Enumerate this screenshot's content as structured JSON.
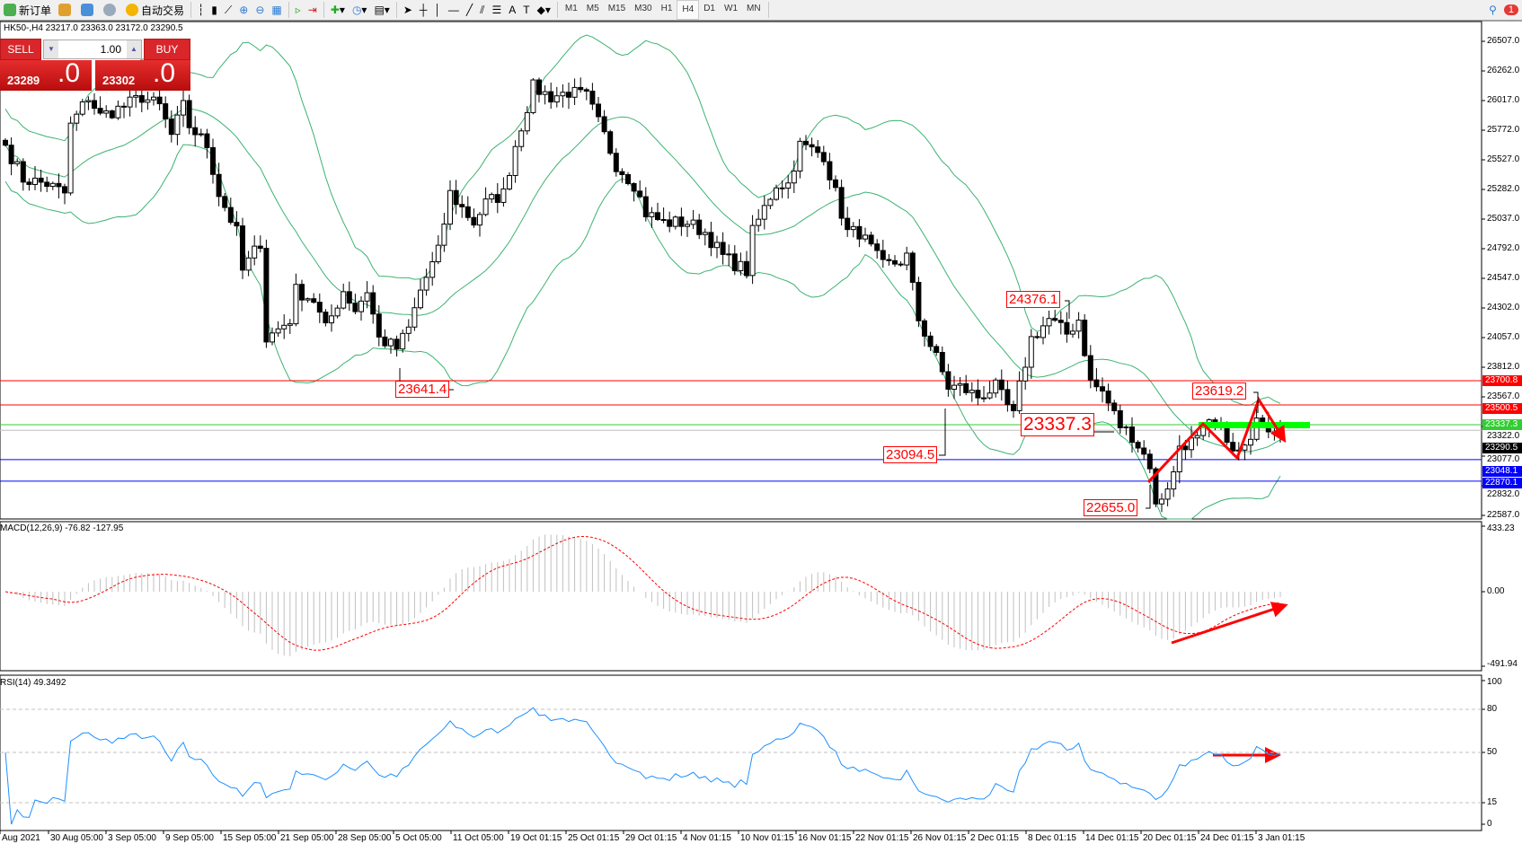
{
  "toolbar": {
    "new_order": "新订单",
    "auto_trading": "自动交易",
    "timeframes": [
      "M1",
      "M5",
      "M15",
      "M30",
      "H1",
      "H4",
      "D1",
      "W1",
      "MN"
    ],
    "active_timeframe": "H4",
    "notification_count": "1",
    "tool_icons": [
      "arrow-cursor-icon",
      "crosshair-icon",
      "vertical-line-icon",
      "horizontal-line-icon",
      "trendline-icon",
      "fibonacci-icon",
      "fibo-fan-icon",
      "text-icon",
      "text-label-icon",
      "shapes-icon"
    ]
  },
  "symbol_header": "HK50-,H4  23217.0 23363.0 23172.0 23290.5",
  "trade_panel": {
    "sell_label": "SELL",
    "buy_label": "BUY",
    "lot": "1.00",
    "sell_price_main": "23289",
    "sell_price_big": ".0",
    "buy_price_main": "23302",
    "buy_price_big": ".0"
  },
  "price_axis": [
    "26507.0",
    "26262.0",
    "26017.0",
    "25772.0",
    "25527.0",
    "25282.0",
    "25037.0",
    "24792.0",
    "24547.0",
    "24302.0",
    "24057.0",
    "23812.0",
    "23567.0",
    "23322.0",
    "23077.0",
    "22832.0",
    "22587.0"
  ],
  "price_range": [
    22587.0,
    26507.0
  ],
  "hlines": [
    {
      "value": 23700.8,
      "label": "23700.8",
      "color": "#ff0000"
    },
    {
      "value": 23500.5,
      "label": "23500.5",
      "color": "#ff0000"
    },
    {
      "value": 23337.3,
      "label": "23337.3",
      "color": "#32cd32"
    },
    {
      "value": 23290.5,
      "label": "23290.5",
      "color": "#c0c0c0",
      "label_bg": "#000000"
    },
    {
      "value": 23048.1,
      "label": "23048.1",
      "color": "#0000ff"
    },
    {
      "value": 22870.1,
      "label": "22870.1",
      "color": "#0000ff"
    }
  ],
  "annotations": [
    "24376.1",
    "23641.4",
    "23094.5",
    "23337.3",
    "23619.2",
    "22655.0"
  ],
  "price_path": [
    [
      0,
      25648
    ],
    [
      3,
      25368
    ],
    [
      7,
      25328
    ],
    [
      10,
      25248
    ],
    [
      11,
      25808
    ],
    [
      14,
      26048
    ],
    [
      16,
      25888
    ],
    [
      20,
      25968
    ],
    [
      23,
      26048
    ],
    [
      26,
      25968
    ],
    [
      28,
      25728
    ],
    [
      30,
      25968
    ],
    [
      31,
      25808
    ],
    [
      34,
      25648
    ],
    [
      36,
      25248
    ],
    [
      39,
      24928
    ],
    [
      40,
      24608
    ],
    [
      43,
      24848
    ],
    [
      44,
      24048
    ],
    [
      46,
      24128
    ],
    [
      48,
      24208
    ],
    [
      49,
      24448
    ],
    [
      52,
      24368
    ],
    [
      54,
      24128
    ],
    [
      57,
      24448
    ],
    [
      59,
      24288
    ],
    [
      61,
      24448
    ],
    [
      63,
      24048
    ],
    [
      66,
      23968
    ],
    [
      68,
      24128
    ],
    [
      70,
      24448
    ],
    [
      73,
      24768
    ],
    [
      75,
      25248
    ],
    [
      79,
      25008
    ],
    [
      81,
      25168
    ],
    [
      84,
      25248
    ],
    [
      86,
      25648
    ],
    [
      89,
      26128
    ],
    [
      92,
      26048
    ],
    [
      95,
      26088
    ],
    [
      98,
      26048
    ],
    [
      101,
      25728
    ],
    [
      103,
      25488
    ],
    [
      106,
      25328
    ],
    [
      108,
      25088
    ],
    [
      111,
      25008
    ],
    [
      115,
      25008
    ],
    [
      118,
      24928
    ],
    [
      121,
      24728
    ],
    [
      125,
      24608
    ],
    [
      126,
      24928
    ],
    [
      130,
      25328
    ],
    [
      132,
      25328
    ],
    [
      134,
      25648
    ],
    [
      138,
      25568
    ],
    [
      140,
      25248
    ],
    [
      142,
      24928
    ],
    [
      144,
      24928
    ],
    [
      148,
      24648
    ],
    [
      151,
      24688
    ],
    [
      152,
      24728
    ],
    [
      154,
      24208
    ],
    [
      157,
      23888
    ],
    [
      159,
      23648
    ],
    [
      161,
      23648
    ],
    [
      164,
      23568
    ],
    [
      167,
      23648
    ],
    [
      170,
      23408
    ],
    [
      171,
      23648
    ],
    [
      173,
      24048
    ],
    [
      176,
      24208
    ],
    [
      179,
      24088
    ],
    [
      181,
      24208
    ],
    [
      183,
      23688
    ],
    [
      185,
      23608
    ],
    [
      188,
      23328
    ],
    [
      190,
      23248
    ],
    [
      193,
      23008
    ],
    [
      194,
      22655
    ],
    [
      197,
      22928
    ],
    [
      198,
      23168
    ],
    [
      201,
      23208
    ],
    [
      203,
      23328
    ],
    [
      206,
      23248
    ],
    [
      207,
      23088
    ],
    [
      210,
      23168
    ],
    [
      211,
      23448
    ],
    [
      213,
      23328
    ],
    [
      215,
      23290.5
    ]
  ],
  "macd": {
    "title": "MACD(12,26,9) -76.82 -127.95",
    "axis": [
      "433.23",
      "0.00",
      "-491.94"
    ],
    "range": [
      -491.94,
      433.23
    ]
  },
  "rsi": {
    "title": "RSI(14) 49.3492",
    "axis": [
      "100",
      "80",
      "50",
      "15",
      "0"
    ],
    "levels": [
      80,
      50,
      15
    ]
  },
  "time_axis": [
    "Aug 2021",
    "30 Aug 05:00",
    "3 Sep 05:00",
    "9 Sep 05:00",
    "15 Sep 05:00",
    "21 Sep 05:00",
    "28 Sep 05:00",
    "5 Oct 05:00",
    "11 Oct 05:00",
    "19 Oct 01:15",
    "25 Oct 01:15",
    "29 Oct 01:15",
    "4 Nov 01:15",
    "10 Nov 01:15",
    "16 Nov 01:15",
    "22 Nov 01:15",
    "26 Nov 01:15",
    "2 Dec 01:15",
    "8 Dec 01:15",
    "14 Dec 01:15",
    "20 Dec 01:15",
    "24 Dec 01:15",
    "3 Jan 01:15"
  ],
  "colors": {
    "bollinger": "#3cb371",
    "macd_signal": "#ff0000",
    "macd_hist": "#c0c0c0",
    "rsi": "#1e90ff",
    "arrows": "#ff0000",
    "support_bar": "#00ff00"
  }
}
